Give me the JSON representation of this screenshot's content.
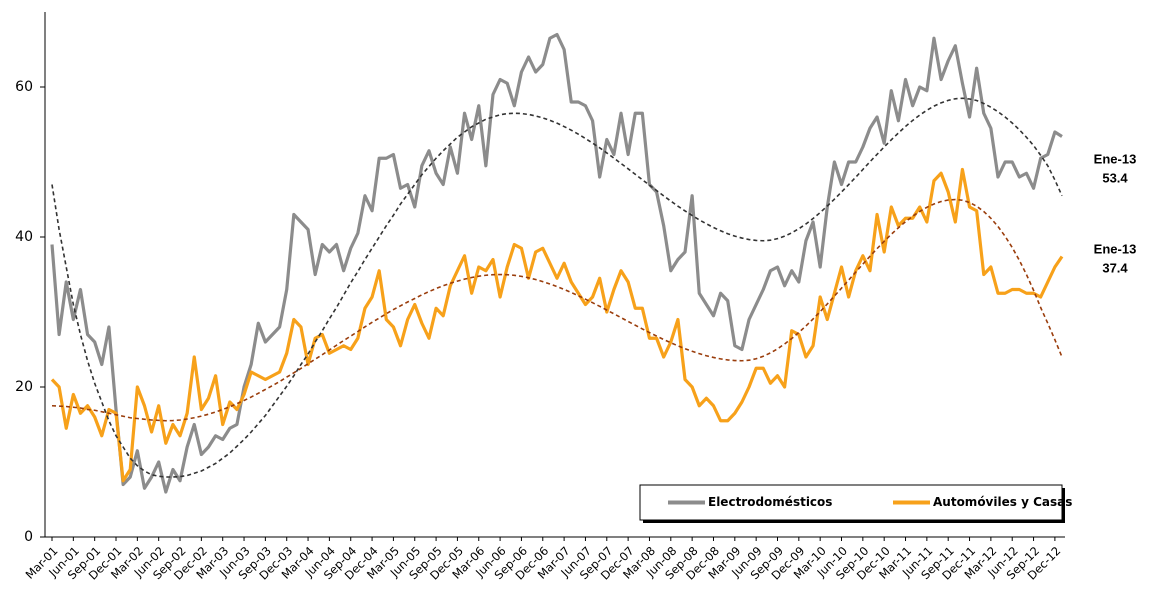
{
  "chart_data": {
    "type": "line",
    "categories": [
      "Mar-01",
      null,
      null,
      "Jun-01",
      null,
      null,
      "Sep-01",
      null,
      null,
      "Dec-01",
      null,
      null,
      "Mar-02",
      null,
      null,
      "Jun-02",
      null,
      null,
      "Sep-02",
      null,
      null,
      "Dec-02",
      null,
      null,
      "Mar-03",
      null,
      null,
      "Jun-03",
      null,
      null,
      "Sep-03",
      null,
      null,
      "Dec-03",
      null,
      null,
      "Mar-04",
      null,
      null,
      "Jun-04",
      null,
      null,
      "Sep-04",
      null,
      null,
      "Dec-04",
      null,
      null,
      "Mar-05",
      null,
      null,
      "Jun-05",
      null,
      null,
      "Sep-05",
      null,
      null,
      "Dec-05",
      null,
      null,
      "Mar-06",
      null,
      null,
      "Jun-06",
      null,
      null,
      "Sep-06",
      null,
      null,
      "Dec-06",
      null,
      null,
      "Mar-07",
      null,
      null,
      "Jun-07",
      null,
      null,
      "Sep-07",
      null,
      null,
      "Dec-07",
      null,
      null,
      "Mar-08",
      null,
      null,
      "Jun-08",
      null,
      null,
      "Sep-08",
      null,
      null,
      "Dec-08",
      null,
      null,
      "Mar-09",
      null,
      null,
      "Jun-09",
      null,
      null,
      "Sep-09",
      null,
      null,
      "Dec-09",
      null,
      null,
      "Mar-10",
      null,
      null,
      "Jun-10",
      null,
      null,
      "Sep-10",
      null,
      null,
      "Dec-10",
      null,
      null,
      "Mar-11",
      null,
      null,
      "Jun-11",
      null,
      null,
      "Sep-11",
      null,
      null,
      "Dec-11",
      null,
      null,
      "Mar-12",
      null,
      null,
      "Jun-12",
      null,
      null,
      "Sep-12",
      null,
      null,
      "Dec-12",
      null
    ],
    "series": [
      {
        "name": "Electrodomésticos",
        "color": "#8c8c8c",
        "values": [
          39,
          27,
          34,
          29,
          33,
          27,
          26,
          23,
          28,
          17,
          7,
          8,
          11.5,
          6.5,
          8,
          10,
          6,
          9,
          7.5,
          12,
          15,
          11,
          12,
          13.5,
          13,
          14.5,
          15,
          20,
          23,
          28.5,
          26,
          27,
          28,
          33,
          43,
          42,
          41,
          35,
          39,
          38,
          39,
          35.5,
          38.5,
          40.5,
          45.5,
          43.5,
          50.5,
          50.5,
          51,
          46.5,
          47,
          44,
          49.5,
          51.5,
          48.5,
          47,
          52,
          48.5,
          56.5,
          53,
          57.5,
          49.5,
          59,
          61,
          60.5,
          57.5,
          62,
          64,
          62,
          63,
          66.5,
          67,
          65,
          58,
          58,
          57.5,
          55.5,
          48,
          53,
          51,
          56.5,
          51,
          56.5,
          56.5,
          47,
          46,
          41.5,
          35.5,
          37,
          38,
          45.5,
          32.5,
          31,
          29.5,
          32.5,
          31.5,
          25.5,
          25,
          29,
          31,
          33,
          35.5,
          36,
          33.5,
          35.5,
          34,
          39.5,
          42,
          36,
          44,
          50,
          47,
          50,
          50,
          52,
          54.5,
          56,
          52.5,
          59.5,
          55.5,
          61,
          57.5,
          60,
          59.5,
          66.5,
          61,
          63.5,
          65.5,
          60.5,
          56,
          62.5,
          56.5,
          54.5,
          48,
          50,
          50,
          48,
          48.5,
          46.5,
          50.5,
          51,
          54,
          53.4
        ]
      },
      {
        "name": "Automóviles y Casas",
        "color": "#f7a11a",
        "values": [
          21,
          20,
          14.5,
          19,
          16.5,
          17.5,
          16,
          13.5,
          17,
          16.5,
          7.5,
          9,
          20,
          17.5,
          14,
          17.5,
          12.5,
          15,
          13.5,
          16.5,
          24,
          17,
          18.5,
          21.5,
          15,
          18,
          17,
          19,
          22,
          21.5,
          21,
          21.5,
          22,
          24.5,
          29,
          28,
          23,
          26.5,
          27,
          24.5,
          25,
          25.5,
          25,
          26.5,
          30.5,
          32,
          35.5,
          29,
          28,
          25.5,
          29,
          31,
          28.5,
          26.5,
          30.5,
          29.5,
          33.5,
          35.5,
          37.5,
          32.5,
          36,
          35.5,
          37,
          32,
          36,
          39,
          38.5,
          34.5,
          38,
          38.5,
          36.5,
          34.5,
          36.5,
          34,
          32.5,
          31,
          32,
          34.5,
          30,
          33,
          35.5,
          34,
          30.5,
          30.5,
          26.5,
          26.5,
          24,
          26,
          29,
          21,
          20,
          17.5,
          18.5,
          17.5,
          15.5,
          15.5,
          16.5,
          18,
          20,
          22.5,
          22.5,
          20.5,
          21.5,
          20,
          27.5,
          27,
          24,
          25.5,
          32,
          29,
          32.5,
          36,
          32,
          35.5,
          37.5,
          35.5,
          43,
          38,
          44,
          41.5,
          42.5,
          42.5,
          44,
          42,
          47.5,
          48.5,
          46,
          42,
          49,
          44,
          43.5,
          35,
          36,
          32.5,
          32.5,
          33,
          33,
          32.5,
          32.5,
          32,
          34,
          36,
          37.4
        ]
      }
    ],
    "trends": [
      {
        "color": "#333333",
        "values": [
          47,
          41,
          36,
          31,
          27,
          23.5,
          20.5,
          18,
          15.5,
          13.5,
          12,
          10.5,
          9.5,
          8.8,
          8.3,
          8.1,
          8,
          8,
          8.05,
          8.2,
          8.5,
          8.8,
          9.3,
          9.8,
          10.5,
          11.2,
          12.1,
          13,
          14,
          15.1,
          16.2,
          17.5,
          18.8,
          20.1,
          21.5,
          23,
          24.4,
          26,
          27.5,
          29.1,
          30.6,
          32.25,
          33.9,
          35.4,
          37,
          38.5,
          40,
          41.5,
          42.9,
          44.4,
          45.7,
          47,
          48.3,
          49.4,
          50.5,
          51.5,
          52.4,
          53.3,
          54,
          54.7,
          55.2,
          55.7,
          56,
          56.3,
          56.45,
          56.5,
          56.46,
          56.34,
          56.14,
          55.88,
          55.56,
          55.18,
          54.73,
          54.24,
          53.71,
          53.13,
          52.52,
          51.89,
          51.21,
          50.52,
          49.8,
          49.09,
          48.36,
          47.64,
          46.91,
          46.2,
          45.48,
          44.79,
          44.11,
          43.48,
          42.87,
          42.29,
          41.76,
          41.27,
          40.83,
          40.44,
          40.12,
          39.86,
          39.66,
          39.54,
          39.5,
          39.57,
          39.78,
          40.11,
          40.55,
          41.1,
          41.74,
          42.46,
          43.26,
          44.13,
          45.04,
          45.99,
          46.98,
          47.97,
          49,
          50.03,
          51.02,
          52.01,
          52.96,
          53.87,
          54.74,
          55.54,
          56.26,
          56.9,
          57.45,
          57.89,
          58.22,
          58.43,
          58.5,
          58.4,
          58.2,
          57.8,
          57.3,
          56.7,
          56,
          55.2,
          54.3,
          53.3,
          52.2,
          50.9,
          49.5,
          47.6,
          45.5
        ]
      },
      {
        "color": "#9a3d0c",
        "values": [
          17.5,
          17.45,
          17.4,
          17.3,
          17.2,
          17,
          16.9,
          16.7,
          16.5,
          16.3,
          16.1,
          15.9,
          15.8,
          15.7,
          15.6,
          15.55,
          15.5,
          15.53,
          15.6,
          15.73,
          15.9,
          16.12,
          16.37,
          16.67,
          17,
          17.36,
          17.78,
          18.2,
          18.66,
          19.16,
          19.67,
          20.19,
          20.73,
          21.32,
          21.89,
          22.48,
          23.1,
          23.71,
          24.31,
          24.93,
          25.57,
          26.19,
          26.79,
          27.4,
          28.02,
          28.62,
          29.19,
          29.77,
          30.32,
          30.83,
          31.33,
          31.8,
          32.29,
          32.72,
          33.13,
          33.5,
          33.83,
          34.12,
          34.38,
          34.6,
          34.77,
          34.9,
          34.97,
          35,
          34.97,
          34.89,
          34.75,
          34.56,
          34.33,
          34.05,
          33.74,
          33.39,
          33.01,
          32.6,
          32.17,
          31.71,
          31.24,
          30.76,
          30.26,
          29.76,
          29.25,
          28.74,
          28.24,
          27.74,
          27.26,
          26.79,
          26.33,
          25.9,
          25.49,
          25.11,
          24.76,
          24.45,
          24.17,
          23.94,
          23.75,
          23.61,
          23.53,
          23.5,
          23.57,
          23.77,
          24.1,
          24.54,
          25.09,
          25.74,
          26.46,
          27.27,
          28.14,
          29.07,
          30.05,
          31.07,
          32.12,
          33.18,
          34.25,
          35.32,
          36.38,
          37.43,
          38.45,
          39.43,
          40.36,
          41.23,
          42.04,
          42.76,
          43.41,
          43.96,
          44.4,
          44.73,
          44.93,
          45,
          44.9,
          44.6,
          44.1,
          43.4,
          42.5,
          41.4,
          40.1,
          38.6,
          36.9,
          35,
          32.9,
          30.6,
          28.5,
          26.3,
          24
        ]
      }
    ],
    "annotations": [
      {
        "label": "Ene-13",
        "series": 0
      },
      {
        "label": "Ene-13",
        "series": 1
      }
    ],
    "ylim": [
      0,
      70
    ],
    "yticks": [
      0,
      20,
      40,
      60
    ],
    "grid": false,
    "legend": "bottom-right"
  }
}
